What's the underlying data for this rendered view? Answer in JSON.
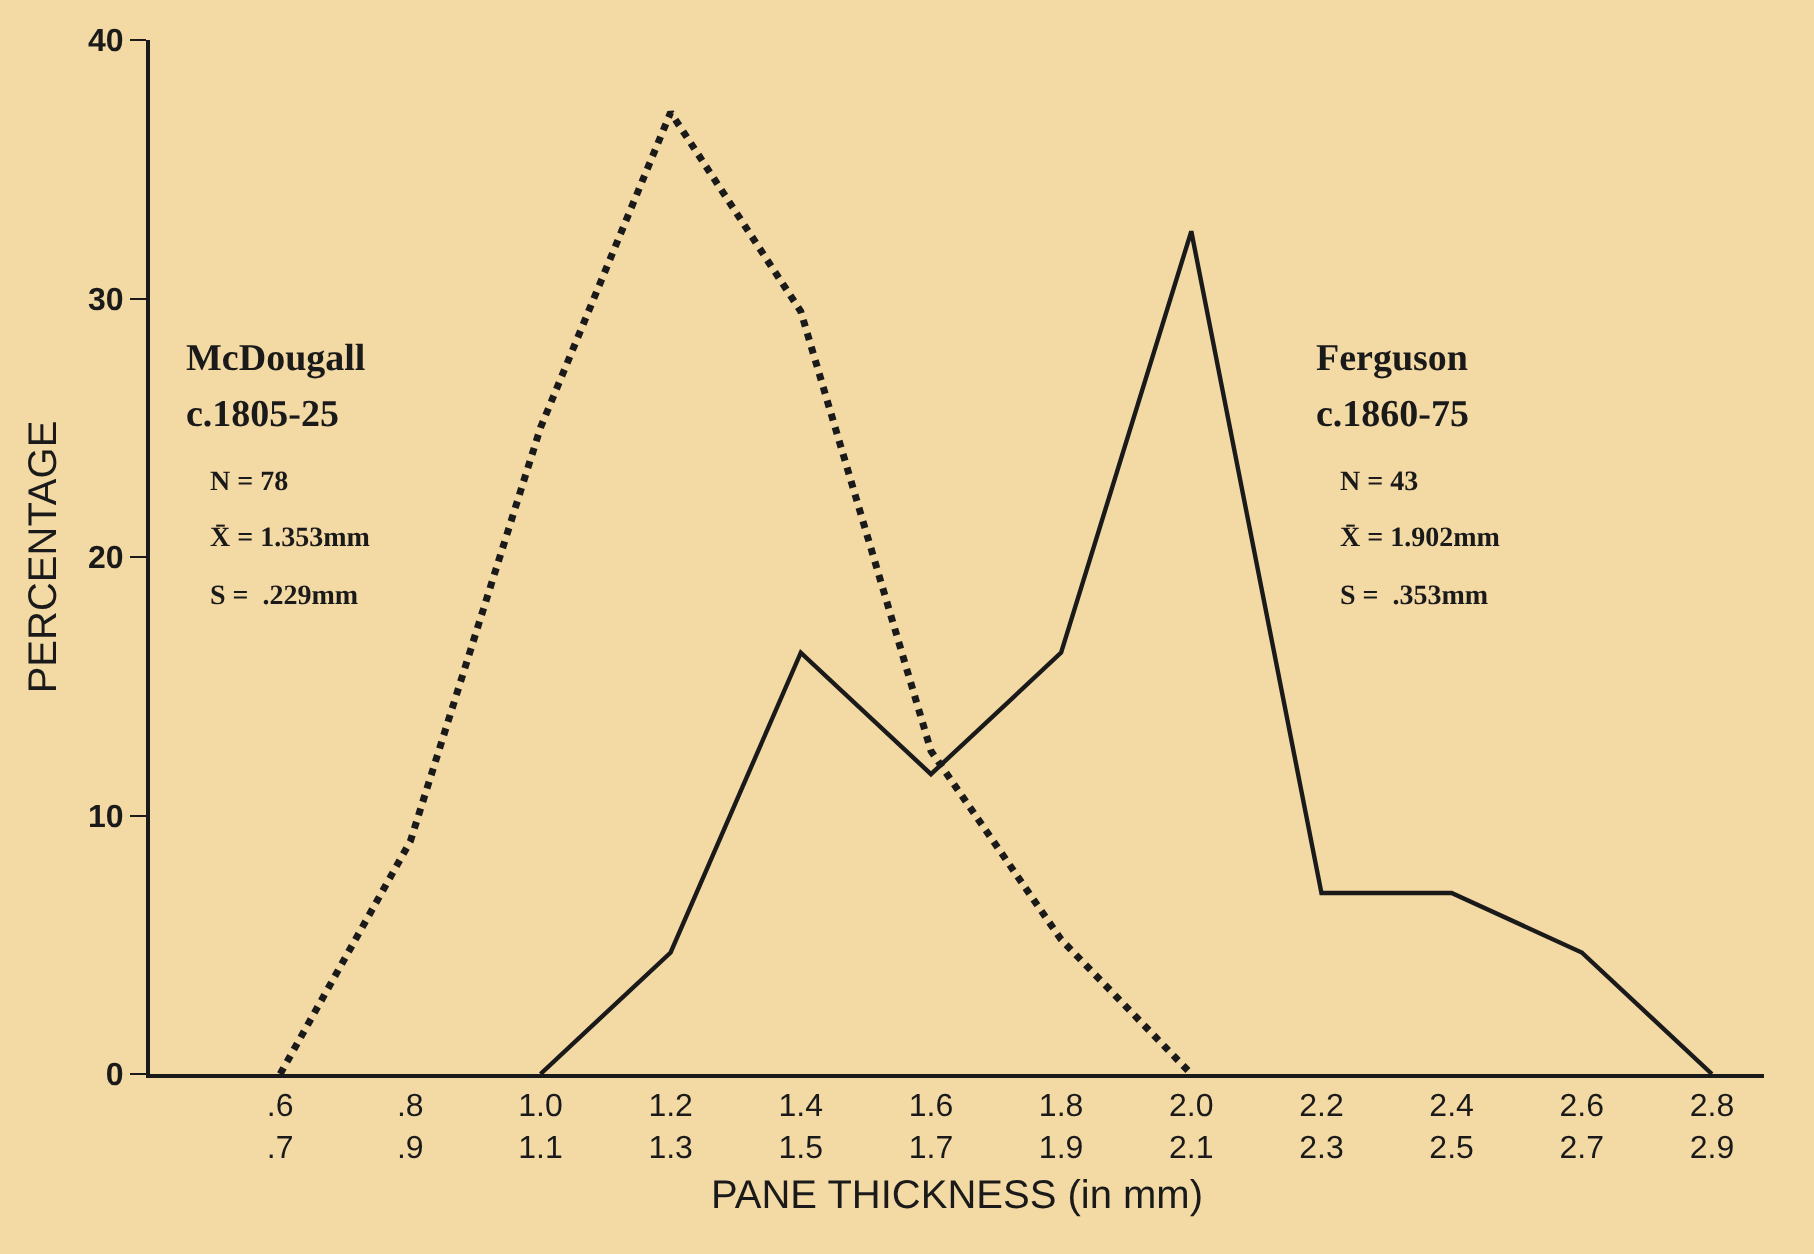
{
  "chart_data": {
    "type": "line",
    "xlabel": "PANE THICKNESS (in mm)",
    "ylabel": "PERCENTAGE",
    "categories": [
      ".6\n.7",
      ".8\n.9",
      "1.0\n1.1",
      "1.2\n1.3",
      "1.4\n1.5",
      "1.6\n1.7",
      "1.8\n1.9",
      "2.0\n2.1",
      "2.2\n2.3",
      "2.4\n2.5",
      "2.6\n2.7",
      "2.8\n2.9"
    ],
    "series": [
      {
        "color": "#1a1a1a",
        "line_style": "dotted",
        "values": [
          0,
          9,
          25,
          37.2,
          29.5,
          12.5,
          5.2,
          0,
          null,
          null,
          null,
          null
        ]
      },
      {
        "color": "#1a1a1a",
        "line_style": "solid",
        "values": [
          null,
          null,
          0,
          4.7,
          16.3,
          11.6,
          16.3,
          32.6,
          7,
          7,
          4.7,
          0
        ]
      }
    ],
    "ylim": [
      0,
      40
    ],
    "yticks": [
      0,
      10,
      20,
      30,
      40
    ],
    "grid": false,
    "marker": "none",
    "annotations": [
      "McDougall",
      "c.1805-25",
      "N = 78",
      "X̄ = 1.353mm",
      "S =  .229mm",
      "Ferguson",
      "c.1860-75",
      "N = 43",
      "X̄ = 1.902mm",
      "S =  .353mm"
    ]
  }
}
